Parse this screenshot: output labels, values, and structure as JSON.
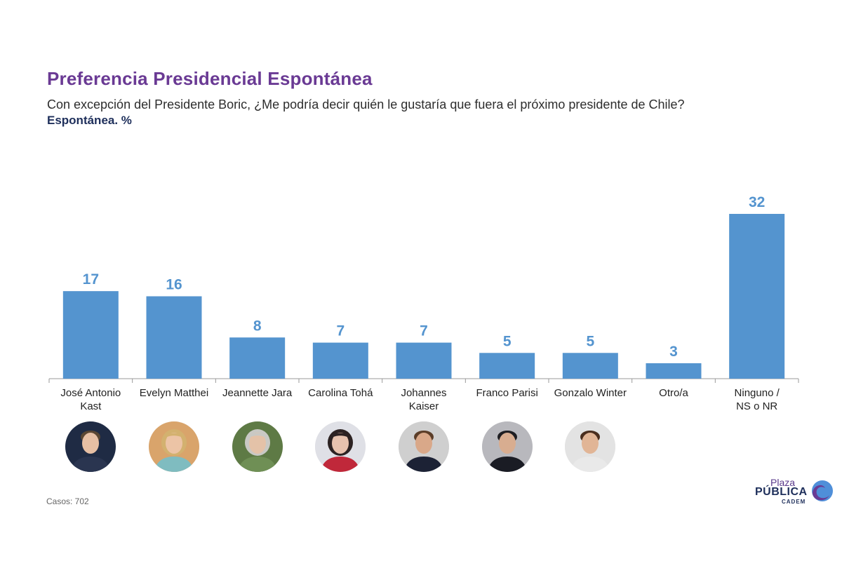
{
  "header": {
    "title": "Preferencia Presidencial Espontánea",
    "subtitle": "Con excepción del Presidente Boric, ¿Me podría decir quién le gustaría que fuera el próximo presidente de Chile?",
    "subtitle_bold": "Espontánea. %"
  },
  "chart_data": {
    "type": "bar",
    "title": "Preferencia Presidencial Espontánea",
    "xlabel": "",
    "ylabel": "",
    "ylim": [
      0,
      34
    ],
    "grid": false,
    "legend": "none",
    "bar_color": "#5494cf",
    "label_color": "#5494cf",
    "categories": [
      "José Antonio Kast",
      "Evelyn Matthei",
      "Jeannette Jara",
      "Carolina Tohá",
      "Johannes Kaiser",
      "Franco Parisi",
      "Gonzalo Winter",
      "Otro/a",
      "Ninguno / NS o NR"
    ],
    "category_lines": [
      [
        "José Antonio",
        "Kast"
      ],
      [
        "Evelyn Matthei"
      ],
      [
        "Jeannette Jara"
      ],
      [
        "Carolina Tohá"
      ],
      [
        "Johannes",
        "Kaiser"
      ],
      [
        "Franco Parisi"
      ],
      [
        "Gonzalo Winter"
      ],
      [
        "Otro/a"
      ],
      [
        "Ninguno /",
        "NS o NR"
      ]
    ],
    "values": [
      17,
      16,
      8,
      7,
      7,
      5,
      5,
      3,
      32
    ]
  },
  "portraits": [
    {
      "name": "José Antonio Kast",
      "icon": "man-portrait-icon",
      "bg": "#1f2b44",
      "skin": "#e6bfa4",
      "hair": "#5a4632",
      "shirt": "#2a3550"
    },
    {
      "name": "Evelyn Matthei",
      "icon": "woman-portrait-icon",
      "bg": "#d9a46b",
      "skin": "#ecc4a6",
      "hair": "#d3b16f",
      "shirt": "#7fbcc0"
    },
    {
      "name": "Jeannette Jara",
      "icon": "woman-portrait-icon",
      "bg": "#5e7a45",
      "skin": "#e4c2a8",
      "hair": "#c9c9c4",
      "shirt": "#6f8f55"
    },
    {
      "name": "Carolina Tohá",
      "icon": "woman-portrait-icon",
      "bg": "#dfe0e6",
      "skin": "#e7c2ae",
      "hair": "#2c2222",
      "shirt": "#c0283a"
    },
    {
      "name": "Johannes Kaiser",
      "icon": "man-portrait-icon",
      "bg": "#cfcfcf",
      "skin": "#d9a889",
      "hair": "#5b3d28",
      "shirt": "#1c2235"
    },
    {
      "name": "Franco Parisi",
      "icon": "man-portrait-icon",
      "bg": "#b8b8bd",
      "skin": "#d8ad90",
      "hair": "#1e1e22",
      "shirt": "#1a1c24"
    },
    {
      "name": "Gonzalo Winter",
      "icon": "man-portrait-icon",
      "bg": "#e3e3e3",
      "skin": "#e1b596",
      "hair": "#4a2e1e",
      "shirt": "#e9e9e9"
    }
  ],
  "footer": {
    "casos": "Casos: 702"
  },
  "logo": {
    "line1": "Plaza",
    "line2": "PÚBLICA",
    "line3": "CADEM",
    "color_primary": "#1e2f5b",
    "color_accent": "#6a3a94",
    "color_swirl": "#4f8fd9"
  }
}
